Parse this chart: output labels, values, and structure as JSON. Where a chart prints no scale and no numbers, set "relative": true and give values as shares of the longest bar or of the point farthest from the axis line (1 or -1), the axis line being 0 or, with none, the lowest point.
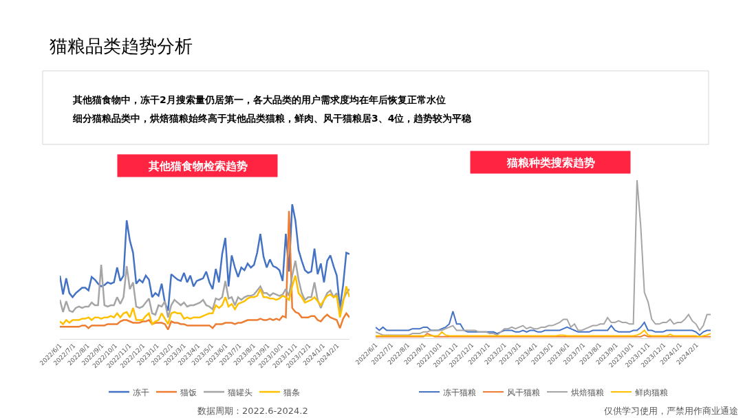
{
  "chart_data": [
    {
      "type": "other",
      "title": "猫粮品类趋势分析",
      "annotations": [
        "其他猫食物中，冻干2月搜索量仍居第一，各大品类的用户需求度均在年后恢复正常水位",
        "细分猫粮品类中，烘焙猫粮始终高于其他品类猫粮，鲜肉、风干猫粮居3、4位，趋势较为平稳"
      ]
    },
    {
      "type": "line",
      "title": "其他猫食物检索趋势",
      "relative": true,
      "legend": "bottom",
      "annotations": [
        "数据周期：2022.6-2024.2"
      ],
      "x": [
        "2022-06-01",
        "2022-06-08",
        "2022-06-15",
        "2022-06-22",
        "2022-06-29",
        "2022-07-06",
        "2022-07-13",
        "2022-07-20",
        "2022-07-27",
        "2022-08-03",
        "2022-08-10",
        "2022-08-17",
        "2022-08-24",
        "2022-08-31",
        "2022-09-07",
        "2022-09-14",
        "2022-09-21",
        "2022-09-28",
        "2022-10-05",
        "2022-10-12",
        "2022-10-19",
        "2022-10-26",
        "2022-11-02",
        "2022-11-09",
        "2022-11-16",
        "2022-11-23",
        "2022-11-30",
        "2022-12-07",
        "2022-12-14",
        "2022-12-21",
        "2022-12-28",
        "2023-01-04",
        "2023-01-11",
        "2023-01-18",
        "2023-01-25",
        "2023-02-01",
        "2023-02-08",
        "2023-02-15",
        "2023-02-22",
        "2023-03-01",
        "2023-03-08",
        "2023-03-15",
        "2023-03-22",
        "2023-03-29",
        "2023-04-05",
        "2023-04-12",
        "2023-04-19",
        "2023-04-26",
        "2023-05-03",
        "2023-05-10",
        "2023-05-17",
        "2023-05-24",
        "2023-05-31",
        "2023-06-07",
        "2023-06-14",
        "2023-06-21",
        "2023-06-28",
        "2023-07-05",
        "2023-07-12",
        "2023-07-19",
        "2023-07-26",
        "2023-08-02",
        "2023-08-09",
        "2023-08-16",
        "2023-08-23",
        "2023-08-30",
        "2023-09-06",
        "2023-09-13",
        "2023-09-20",
        "2023-09-27",
        "2023-10-04",
        "2023-10-11",
        "2023-10-18",
        "2023-10-25",
        "2023-11-01",
        "2023-11-08",
        "2023-11-15",
        "2023-11-22",
        "2023-11-29",
        "2023-12-06",
        "2023-12-13",
        "2023-12-20",
        "2023-12-27",
        "2024-01-03",
        "2024-01-10",
        "2024-01-17",
        "2024-01-24",
        "2024-01-31",
        "2024-02-07",
        "2024-02-14",
        "2024-02-21",
        "2024-02-28"
      ],
      "xlim": [
        "2022-06-01",
        "2024-02-28"
      ],
      "xticks": [
        {
          "value": "2022-06-01",
          "label": "2022/6/1"
        },
        {
          "value": "2022-07-01",
          "label": "2022/7/1"
        },
        {
          "value": "2022-08-01",
          "label": "2022/8/1"
        },
        {
          "value": "2022-09-01",
          "label": "2022/9/1"
        },
        {
          "value": "2022-10-01",
          "label": "2022/10/1"
        },
        {
          "value": "2022-11-01",
          "label": "2022/11/1"
        },
        {
          "value": "2022-12-01",
          "label": "2022/12/1"
        },
        {
          "value": "2023-01-01",
          "label": "2023/1/1"
        },
        {
          "value": "2023-02-01",
          "label": "2023/2/1"
        },
        {
          "value": "2023-03-01",
          "label": "2023/3/1"
        },
        {
          "value": "2023-04-01",
          "label": "2023/4/1"
        },
        {
          "value": "2023-05-01",
          "label": "2023/5/1"
        },
        {
          "value": "2023-06-01",
          "label": "2023/6/1"
        },
        {
          "value": "2023-07-01",
          "label": "2023/7/1"
        },
        {
          "value": "2023-08-01",
          "label": "2023/8/1"
        },
        {
          "value": "2023-09-01",
          "label": "2023/9/1"
        },
        {
          "value": "2023-10-01",
          "label": "2023/10/1"
        },
        {
          "value": "2023-11-01",
          "label": "2023/11/1"
        },
        {
          "value": "2023-12-01",
          "label": "2023/12/1"
        },
        {
          "value": "2024-01-01",
          "label": "2024/1/1"
        },
        {
          "value": "2024-02-01",
          "label": "2024/2/1"
        }
      ],
      "series": [
        {
          "name": "冻干",
          "color": "#4472c4",
          "values": [
            0.47,
            0.33,
            0.45,
            0.34,
            0.31,
            0.34,
            0.36,
            0.38,
            0.38,
            0.36,
            0.46,
            0.44,
            0.41,
            0.39,
            0.4,
            0.42,
            0.41,
            0.42,
            0.53,
            0.43,
            0.47,
            0.88,
            0.73,
            0.64,
            0.41,
            0.44,
            0.42,
            0.47,
            0.44,
            0.31,
            0.34,
            0.32,
            0.41,
            0.27,
            0.21,
            0.48,
            0.46,
            0.44,
            0.43,
            0.49,
            0.42,
            0.47,
            0.39,
            0.43,
            0.44,
            0.45,
            0.5,
            0.42,
            0.37,
            0.52,
            0.42,
            0.63,
            0.75,
            0.39,
            0.62,
            0.53,
            0.46,
            0.53,
            0.51,
            0.56,
            0.53,
            0.55,
            0.64,
            0.78,
            0.61,
            0.53,
            0.59,
            0.54,
            0.53,
            0.51,
            0.43,
            0.78,
            0.5,
            1.0,
            0.88,
            0.66,
            0.58,
            0.51,
            0.49,
            0.5,
            0.67,
            0.48,
            0.56,
            0.42,
            0.58,
            0.62,
            0.54,
            0.47,
            0.23,
            0.4,
            0.64,
            0.63
          ]
        },
        {
          "name": "猫饭",
          "color": "#ed7d31",
          "values": [
            0.09,
            0.09,
            0.09,
            0.09,
            0.09,
            0.09,
            0.09,
            0.1,
            0.1,
            0.08,
            0.1,
            0.1,
            0.1,
            0.1,
            0.1,
            0.11,
            0.11,
            0.11,
            0.11,
            0.13,
            0.14,
            0.14,
            0.13,
            0.12,
            0.12,
            0.12,
            0.13,
            0.13,
            0.14,
            0.11,
            0.12,
            0.12,
            0.12,
            0.11,
            0.07,
            0.13,
            0.12,
            0.12,
            0.11,
            0.11,
            0.1,
            0.1,
            0.1,
            0.1,
            0.1,
            0.1,
            0.1,
            0.1,
            0.08,
            0.11,
            0.11,
            0.11,
            0.12,
            0.12,
            0.12,
            0.11,
            0.12,
            0.12,
            0.13,
            0.14,
            0.14,
            0.14,
            0.14,
            0.15,
            0.14,
            0.14,
            0.15,
            0.14,
            0.15,
            0.14,
            0.17,
            0.16,
            0.95,
            0.23,
            0.2,
            0.19,
            0.16,
            0.16,
            0.16,
            0.17,
            0.17,
            0.14,
            0.13,
            0.16,
            0.18,
            0.16,
            0.15,
            0.14,
            0.08,
            0.15,
            0.19,
            0.16
          ]
        },
        {
          "name": "猫罐头",
          "color": "#a5a5a5",
          "values": [
            0.29,
            0.2,
            0.28,
            0.21,
            0.2,
            0.23,
            0.24,
            0.23,
            0.24,
            0.24,
            0.27,
            0.25,
            0.25,
            0.55,
            0.25,
            0.24,
            0.25,
            0.25,
            0.31,
            0.26,
            0.31,
            0.54,
            0.37,
            0.42,
            0.24,
            0.23,
            0.24,
            0.27,
            0.3,
            0.19,
            0.18,
            0.25,
            0.24,
            0.28,
            0.16,
            0.25,
            0.29,
            0.27,
            0.25,
            0.27,
            0.24,
            0.25,
            0.25,
            0.26,
            0.27,
            0.29,
            0.25,
            0.24,
            0.22,
            0.3,
            0.29,
            0.31,
            0.43,
            0.3,
            0.31,
            0.25,
            0.31,
            0.29,
            0.31,
            0.32,
            0.32,
            0.33,
            0.36,
            0.39,
            0.34,
            0.34,
            0.32,
            0.34,
            0.33,
            0.32,
            0.33,
            0.37,
            0.32,
            0.47,
            0.58,
            0.44,
            0.34,
            0.29,
            0.31,
            0.31,
            0.42,
            0.29,
            0.23,
            0.29,
            0.34,
            0.36,
            0.31,
            0.34,
            0.2,
            0.29,
            0.34,
            0.37
          ]
        },
        {
          "name": "猫条",
          "color": "#ffc000",
          "values": [
            0.13,
            0.11,
            0.14,
            0.12,
            0.14,
            0.14,
            0.14,
            0.15,
            0.15,
            0.16,
            0.14,
            0.16,
            0.16,
            0.15,
            0.16,
            0.16,
            0.17,
            0.16,
            0.19,
            0.16,
            0.19,
            0.2,
            0.16,
            0.23,
            0.14,
            0.14,
            0.14,
            0.17,
            0.19,
            0.11,
            0.13,
            0.14,
            0.19,
            0.15,
            0.11,
            0.19,
            0.2,
            0.19,
            0.19,
            0.15,
            0.16,
            0.15,
            0.16,
            0.16,
            0.16,
            0.17,
            0.18,
            0.19,
            0.19,
            0.25,
            0.23,
            0.25,
            0.31,
            0.24,
            0.26,
            0.22,
            0.26,
            0.27,
            0.28,
            0.3,
            0.31,
            0.31,
            0.32,
            0.37,
            0.31,
            0.31,
            0.3,
            0.3,
            0.29,
            0.3,
            0.32,
            0.31,
            0.29,
            0.39,
            0.47,
            0.34,
            0.31,
            0.27,
            0.28,
            0.29,
            0.31,
            0.28,
            0.25,
            0.29,
            0.32,
            0.33,
            0.31,
            0.32,
            0.16,
            0.27,
            0.39,
            0.31
          ]
        }
      ]
    },
    {
      "type": "line",
      "title": "猫粮种类搜索趋势",
      "relative": true,
      "legend": "bottom",
      "annotations": [
        "仅供学习使用，严禁用作商业通途"
      ],
      "x": [
        "2022-06-01",
        "2022-06-08",
        "2022-06-15",
        "2022-06-22",
        "2022-06-29",
        "2022-07-06",
        "2022-07-13",
        "2022-07-20",
        "2022-07-27",
        "2022-08-03",
        "2022-08-10",
        "2022-08-17",
        "2022-08-24",
        "2022-08-31",
        "2022-09-07",
        "2022-09-14",
        "2022-09-21",
        "2022-09-28",
        "2022-10-05",
        "2022-10-12",
        "2022-10-19",
        "2022-10-26",
        "2022-11-02",
        "2022-11-09",
        "2022-11-16",
        "2022-11-23",
        "2022-11-30",
        "2022-12-07",
        "2022-12-14",
        "2022-12-21",
        "2022-12-28",
        "2023-01-04",
        "2023-01-11",
        "2023-01-18",
        "2023-01-25",
        "2023-02-01",
        "2023-02-08",
        "2023-02-15",
        "2023-02-22",
        "2023-03-01",
        "2023-03-08",
        "2023-03-15",
        "2023-03-22",
        "2023-03-29",
        "2023-04-05",
        "2023-04-12",
        "2023-04-19",
        "2023-04-26",
        "2023-05-03",
        "2023-05-10",
        "2023-05-17",
        "2023-05-24",
        "2023-05-31",
        "2023-06-07",
        "2023-06-14",
        "2023-06-21",
        "2023-06-28",
        "2023-07-05",
        "2023-07-12",
        "2023-07-19",
        "2023-07-26",
        "2023-08-02",
        "2023-08-09",
        "2023-08-16",
        "2023-08-23",
        "2023-08-30",
        "2023-09-06",
        "2023-09-13",
        "2023-09-20",
        "2023-09-27",
        "2023-10-04",
        "2023-10-11",
        "2023-10-18",
        "2023-10-25",
        "2023-11-01",
        "2023-11-08",
        "2023-11-15",
        "2023-11-22",
        "2023-11-29",
        "2023-12-06",
        "2023-12-13",
        "2023-12-20",
        "2023-12-27",
        "2024-01-03",
        "2024-01-10",
        "2024-01-17",
        "2024-01-24",
        "2024-01-31",
        "2024-02-07",
        "2024-02-14",
        "2024-02-21",
        "2024-02-28"
      ],
      "xlim": [
        "2022-06-01",
        "2024-02-28"
      ],
      "xticks": [
        {
          "value": "2022-06-01",
          "label": "2022/6/1"
        },
        {
          "value": "2022-07-01",
          "label": "2022/7/1"
        },
        {
          "value": "2022-08-01",
          "label": "2022/8/1"
        },
        {
          "value": "2022-09-01",
          "label": "2022/9/1"
        },
        {
          "value": "2022-10-01",
          "label": "2022/10/1"
        },
        {
          "value": "2022-11-01",
          "label": "2022/11/1"
        },
        {
          "value": "2022-12-01",
          "label": "2022/12/1"
        },
        {
          "value": "2023-01-01",
          "label": "2023/1/1"
        },
        {
          "value": "2023-02-01",
          "label": "2023/2/1"
        },
        {
          "value": "2023-03-01",
          "label": "2023/3/1"
        },
        {
          "value": "2023-04-01",
          "label": "2023/4/1"
        },
        {
          "value": "2023-05-01",
          "label": "2023/5/1"
        },
        {
          "value": "2023-06-01",
          "label": "2023/6/1"
        },
        {
          "value": "2023-07-01",
          "label": "2023/7/1"
        },
        {
          "value": "2023-08-01",
          "label": "2023/8/1"
        },
        {
          "value": "2023-09-01",
          "label": "2023/9/1"
        },
        {
          "value": "2023-10-01",
          "label": "2023/10/1"
        },
        {
          "value": "2023-11-01",
          "label": "2023/11/1"
        },
        {
          "value": "2023-12-01",
          "label": "2023/12/1"
        },
        {
          "value": "2024-01-01",
          "label": "2024/1/1"
        },
        {
          "value": "2024-02-01",
          "label": "2024/2/1"
        }
      ],
      "series": [
        {
          "name": "冻干猫粮",
          "color": "#4472c4",
          "values": [
            0.07,
            0.05,
            0.07,
            0.05,
            0.05,
            0.05,
            0.05,
            0.05,
            0.05,
            0.05,
            0.06,
            0.06,
            0.06,
            0.07,
            0.07,
            0.05,
            0.05,
            0.05,
            0.06,
            0.07,
            0.09,
            0.17,
            0.09,
            0.09,
            0.05,
            0.04,
            0.04,
            0.04,
            0.04,
            0.04,
            0.04,
            0.04,
            0.04,
            0.03,
            0.04,
            0.05,
            0.05,
            0.05,
            0.04,
            0.04,
            0.05,
            0.04,
            0.05,
            0.05,
            0.04,
            0.04,
            0.05,
            0.05,
            0.05,
            0.05,
            0.05,
            0.06,
            0.07,
            0.06,
            0.05,
            0.04,
            0.04,
            0.04,
            0.04,
            0.05,
            0.05,
            0.05,
            0.05,
            0.05,
            0.08,
            0.05,
            0.04,
            0.04,
            0.04,
            0.04,
            0.05,
            0.05,
            0.07,
            0.1,
            0.05,
            0.05,
            0.04,
            0.04,
            0.04,
            0.05,
            0.05,
            0.05,
            0.05,
            0.05,
            0.05,
            0.05,
            0.05,
            0.04,
            0.02,
            0.04,
            0.05,
            0.05
          ]
        },
        {
          "name": "风干猫粮",
          "color": "#ed7d31",
          "values": [
            0.01,
            0.01,
            0.01,
            0.01,
            0.01,
            0.01,
            0.01,
            0.01,
            0.01,
            0.01,
            0.01,
            0.01,
            0.01,
            0.01,
            0.03,
            0.02,
            0.01,
            0.01,
            0.01,
            0.01,
            0.01,
            0.01,
            0.01,
            0.01,
            0.01,
            0.01,
            0.01,
            0.01,
            0.01,
            0.01,
            0.01,
            0.01,
            0.01,
            0.01,
            0.01,
            0.01,
            0.01,
            0.01,
            0.01,
            0.01,
            0.01,
            0.01,
            0.01,
            0.01,
            0.01,
            0.01,
            0.01,
            0.01,
            0.01,
            0.01,
            0.01,
            0.01,
            0.01,
            0.01,
            0.01,
            0.01,
            0.01,
            0.01,
            0.01,
            0.01,
            0.01,
            0.01,
            0.01,
            0.01,
            0.01,
            0.01,
            0.01,
            0.01,
            0.01,
            0.01,
            0.01,
            0.01,
            0.01,
            0.02,
            0.01,
            0.01,
            0.01,
            0.01,
            0.01,
            0.01,
            0.01,
            0.01,
            0.01,
            0.01,
            0.01,
            0.01,
            0.01,
            0.01,
            0.01,
            0.01,
            0.01,
            0.01
          ]
        },
        {
          "name": "烘焙猫粮",
          "color": "#a5a5a5",
          "values": [
            0.04,
            0.03,
            0.02,
            0.02,
            0.02,
            0.02,
            0.02,
            0.02,
            0.02,
            0.02,
            0.03,
            0.03,
            0.03,
            0.04,
            0.04,
            0.05,
            0.05,
            0.05,
            0.05,
            0.06,
            0.07,
            0.08,
            0.05,
            0.05,
            0.05,
            0.05,
            0.05,
            0.05,
            0.04,
            0.04,
            0.04,
            0.03,
            0.03,
            0.02,
            0.04,
            0.06,
            0.06,
            0.07,
            0.06,
            0.07,
            0.08,
            0.06,
            0.07,
            0.06,
            0.06,
            0.07,
            0.07,
            0.08,
            0.08,
            0.09,
            0.1,
            0.12,
            0.12,
            0.07,
            0.09,
            0.05,
            0.05,
            0.06,
            0.07,
            0.08,
            0.08,
            0.09,
            0.09,
            0.13,
            0.1,
            0.1,
            0.11,
            0.1,
            0.1,
            0.09,
            0.09,
            1.0,
            0.71,
            0.29,
            0.23,
            0.12,
            0.09,
            0.09,
            0.1,
            0.1,
            0.12,
            0.09,
            0.1,
            0.1,
            0.12,
            0.15,
            0.11,
            0.09,
            0.05,
            0.08,
            0.15,
            0.15
          ]
        },
        {
          "name": "鲜肉猫粮",
          "color": "#ffc000",
          "values": [
            0.015,
            0.015,
            0.015,
            0.015,
            0.015,
            0.015,
            0.015,
            0.015,
            0.015,
            0.015,
            0.015,
            0.015,
            0.015,
            0.015,
            0.015,
            0.015,
            0.015,
            0.015,
            0.04,
            0.02,
            0.015,
            0.015,
            0.015,
            0.015,
            0.015,
            0.015,
            0.015,
            0.015,
            0.015,
            0.015,
            0.015,
            0.015,
            0.015,
            0.015,
            0.015,
            0.015,
            0.015,
            0.015,
            0.015,
            0.015,
            0.015,
            0.015,
            0.015,
            0.015,
            0.015,
            0.015,
            0.015,
            0.015,
            0.015,
            0.015,
            0.02,
            0.02,
            0.015,
            0.015,
            0.015,
            0.015,
            0.015,
            0.015,
            0.015,
            0.015,
            0.015,
            0.015,
            0.015,
            0.015,
            0.015,
            0.015,
            0.015,
            0.015,
            0.015,
            0.015,
            0.015,
            0.02,
            0.03,
            0.05,
            0.02,
            0.015,
            0.015,
            0.015,
            0.015,
            0.015,
            0.025,
            0.015,
            0.015,
            0.015,
            0.015,
            0.015,
            0.015,
            0.015,
            0.01,
            0.015,
            0.02,
            0.03
          ]
        }
      ]
    }
  ]
}
